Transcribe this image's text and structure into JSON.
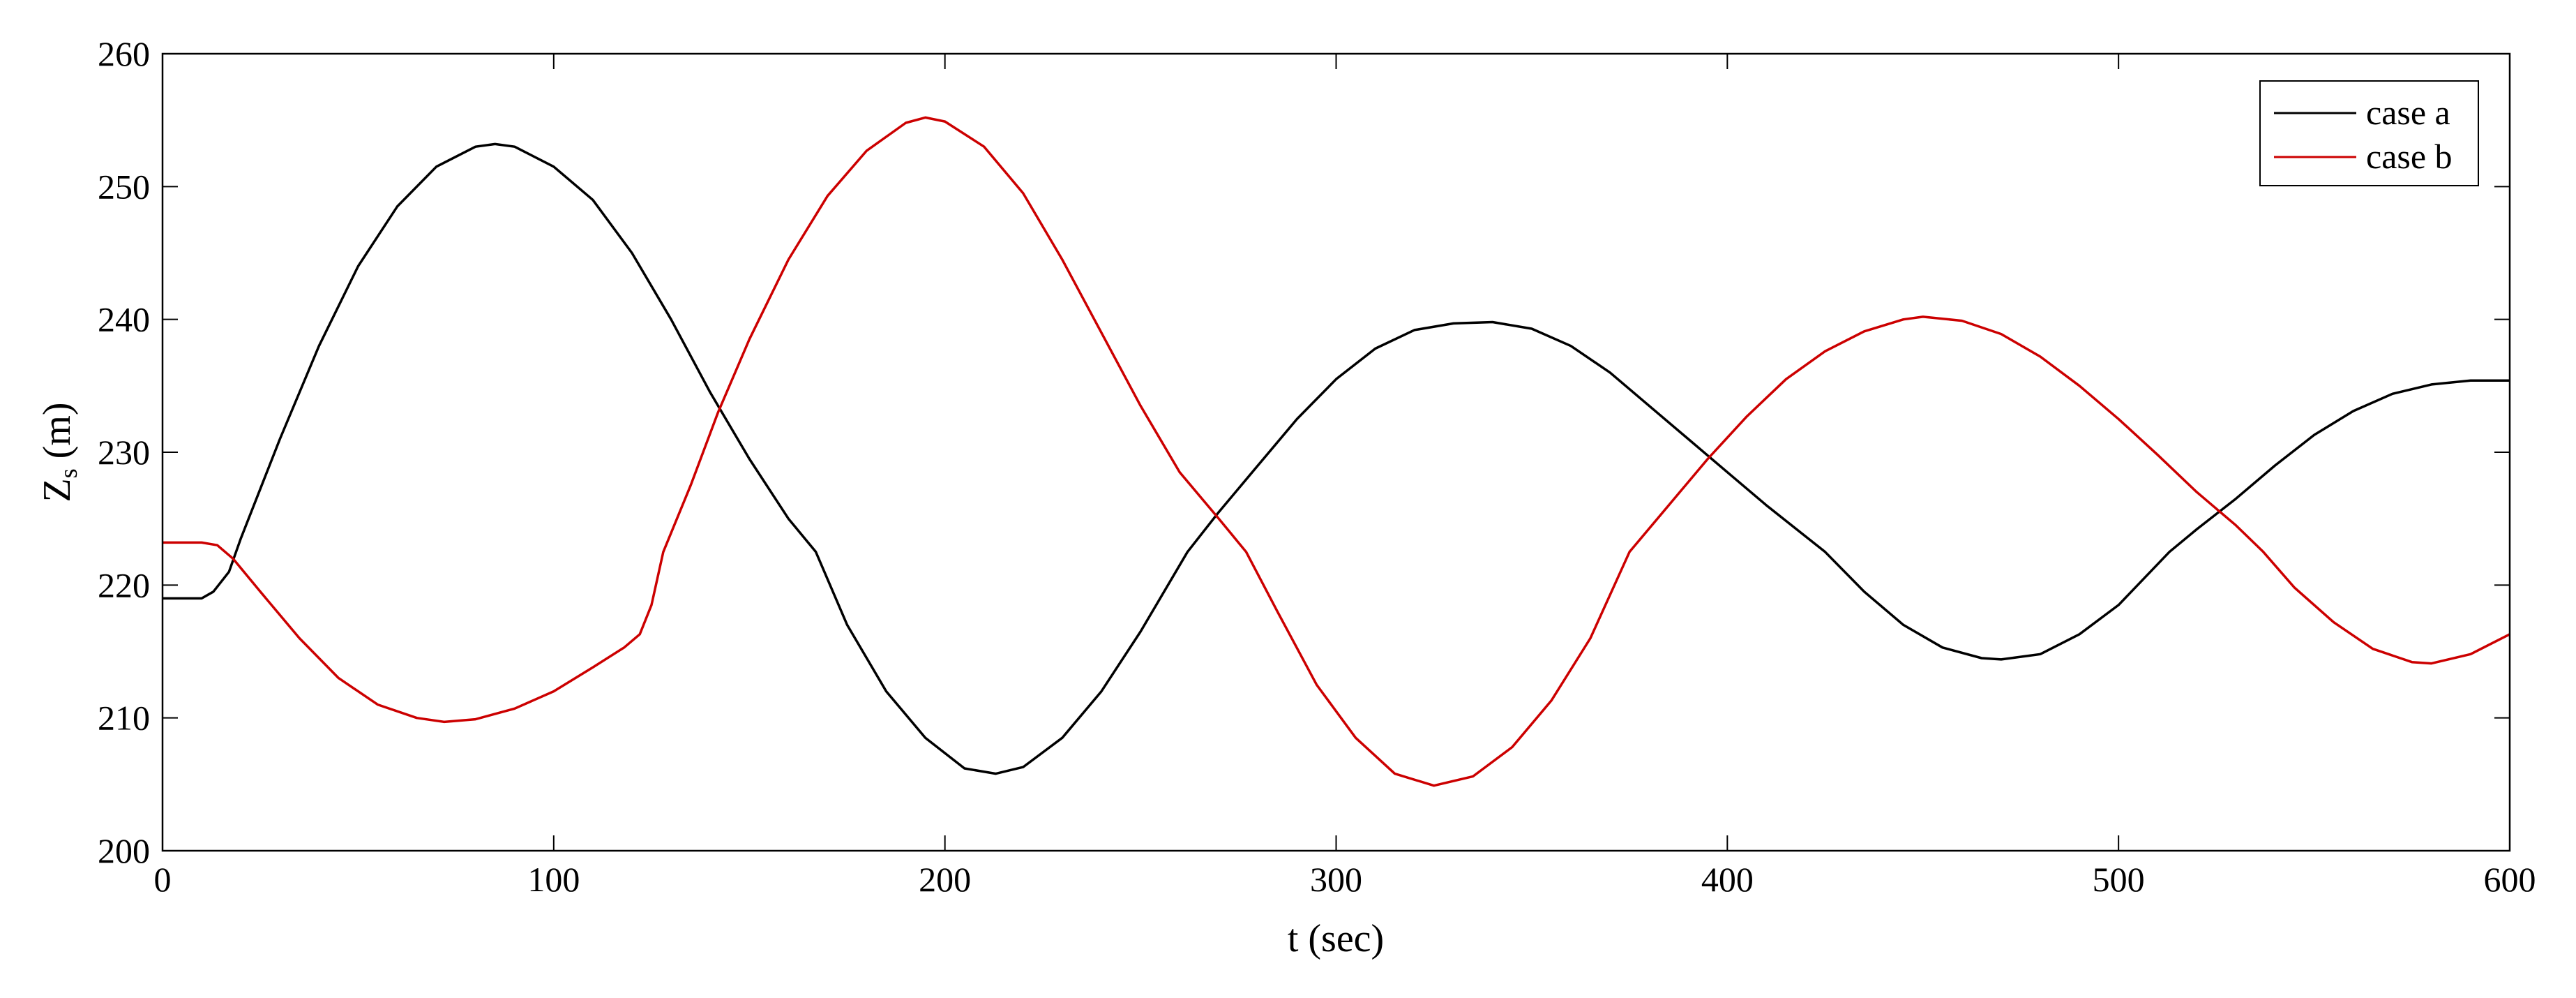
{
  "chart_data": {
    "type": "line",
    "title": "",
    "xlabel": "t (sec)",
    "ylabel_main": "Z",
    "ylabel_sub": "s",
    "ylabel_unit": "(m)",
    "xlim": [
      0,
      600
    ],
    "ylim": [
      200,
      260
    ],
    "xticks": [
      0,
      100,
      200,
      300,
      400,
      500,
      600
    ],
    "yticks": [
      200,
      210,
      220,
      230,
      240,
      250,
      260
    ],
    "grid": false,
    "legend_position": "top-right",
    "series": [
      {
        "name": "case a",
        "color": "#000000",
        "points": [
          [
            0,
            219
          ],
          [
            10,
            219
          ],
          [
            13,
            219.5
          ],
          [
            17,
            221
          ],
          [
            20,
            223.5
          ],
          [
            30,
            231
          ],
          [
            40,
            238
          ],
          [
            50,
            244
          ],
          [
            60,
            248.5
          ],
          [
            70,
            251.5
          ],
          [
            80,
            253
          ],
          [
            85,
            253.2
          ],
          [
            90,
            253
          ],
          [
            100,
            251.5
          ],
          [
            110,
            249
          ],
          [
            120,
            245
          ],
          [
            130,
            240
          ],
          [
            140,
            234.5
          ],
          [
            150,
            229.5
          ],
          [
            160,
            225
          ],
          [
            167,
            222.5
          ],
          [
            175,
            217
          ],
          [
            185,
            212
          ],
          [
            195,
            208.5
          ],
          [
            205,
            206.2
          ],
          [
            213,
            205.8
          ],
          [
            220,
            206.3
          ],
          [
            230,
            208.5
          ],
          [
            240,
            212
          ],
          [
            250,
            216.5
          ],
          [
            262,
            222.5
          ],
          [
            270,
            225.5
          ],
          [
            280,
            229
          ],
          [
            290,
            232.5
          ],
          [
            300,
            235.5
          ],
          [
            310,
            237.8
          ],
          [
            320,
            239.2
          ],
          [
            330,
            239.7
          ],
          [
            340,
            239.8
          ],
          [
            350,
            239.3
          ],
          [
            360,
            238
          ],
          [
            370,
            236
          ],
          [
            380,
            233.5
          ],
          [
            390,
            231
          ],
          [
            400,
            228.5
          ],
          [
            410,
            226
          ],
          [
            425,
            222.5
          ],
          [
            435,
            219.5
          ],
          [
            445,
            217
          ],
          [
            455,
            215.3
          ],
          [
            465,
            214.5
          ],
          [
            470,
            214.4
          ],
          [
            480,
            214.8
          ],
          [
            490,
            216.3
          ],
          [
            500,
            218.5
          ],
          [
            513,
            222.5
          ],
          [
            520,
            224.2
          ],
          [
            530,
            226.5
          ],
          [
            540,
            229
          ],
          [
            550,
            231.3
          ],
          [
            560,
            233.1
          ],
          [
            570,
            234.4
          ],
          [
            580,
            235.1
          ],
          [
            590,
            235.4
          ],
          [
            600,
            235.4
          ]
        ]
      },
      {
        "name": "case b",
        "color": "#cc0000",
        "points": [
          [
            0,
            223.2
          ],
          [
            5,
            223.2
          ],
          [
            10,
            223.2
          ],
          [
            14,
            223
          ],
          [
            18,
            222
          ],
          [
            25,
            219.5
          ],
          [
            35,
            216
          ],
          [
            45,
            213
          ],
          [
            55,
            211
          ],
          [
            65,
            210
          ],
          [
            72,
            209.7
          ],
          [
            80,
            209.9
          ],
          [
            90,
            210.7
          ],
          [
            100,
            212
          ],
          [
            110,
            213.8
          ],
          [
            118,
            215.3
          ],
          [
            122,
            216.3
          ],
          [
            125,
            218.5
          ],
          [
            128,
            222.5
          ],
          [
            135,
            227.5
          ],
          [
            142,
            233
          ],
          [
            150,
            238.5
          ],
          [
            160,
            244.5
          ],
          [
            170,
            249.3
          ],
          [
            180,
            252.7
          ],
          [
            190,
            254.8
          ],
          [
            195,
            255.2
          ],
          [
            200,
            254.9
          ],
          [
            210,
            253
          ],
          [
            220,
            249.5
          ],
          [
            230,
            244.5
          ],
          [
            240,
            239
          ],
          [
            250,
            233.5
          ],
          [
            260,
            228.5
          ],
          [
            270,
            225
          ],
          [
            277,
            222.5
          ],
          [
            285,
            218
          ],
          [
            295,
            212.5
          ],
          [
            305,
            208.5
          ],
          [
            315,
            205.8
          ],
          [
            325,
            204.9
          ],
          [
            335,
            205.6
          ],
          [
            345,
            207.8
          ],
          [
            355,
            211.3
          ],
          [
            365,
            216
          ],
          [
            375,
            222.5
          ],
          [
            385,
            226
          ],
          [
            395,
            229.5
          ],
          [
            405,
            232.7
          ],
          [
            415,
            235.5
          ],
          [
            425,
            237.6
          ],
          [
            435,
            239.1
          ],
          [
            445,
            240
          ],
          [
            450,
            240.2
          ],
          [
            460,
            239.9
          ],
          [
            470,
            238.9
          ],
          [
            480,
            237.2
          ],
          [
            490,
            235
          ],
          [
            500,
            232.5
          ],
          [
            510,
            229.8
          ],
          [
            520,
            227
          ],
          [
            530,
            224.5
          ],
          [
            537,
            222.5
          ],
          [
            545,
            219.8
          ],
          [
            555,
            217.2
          ],
          [
            565,
            215.2
          ],
          [
            575,
            214.2
          ],
          [
            580,
            214.1
          ],
          [
            590,
            214.8
          ],
          [
            600,
            216.3
          ]
        ]
      }
    ]
  }
}
